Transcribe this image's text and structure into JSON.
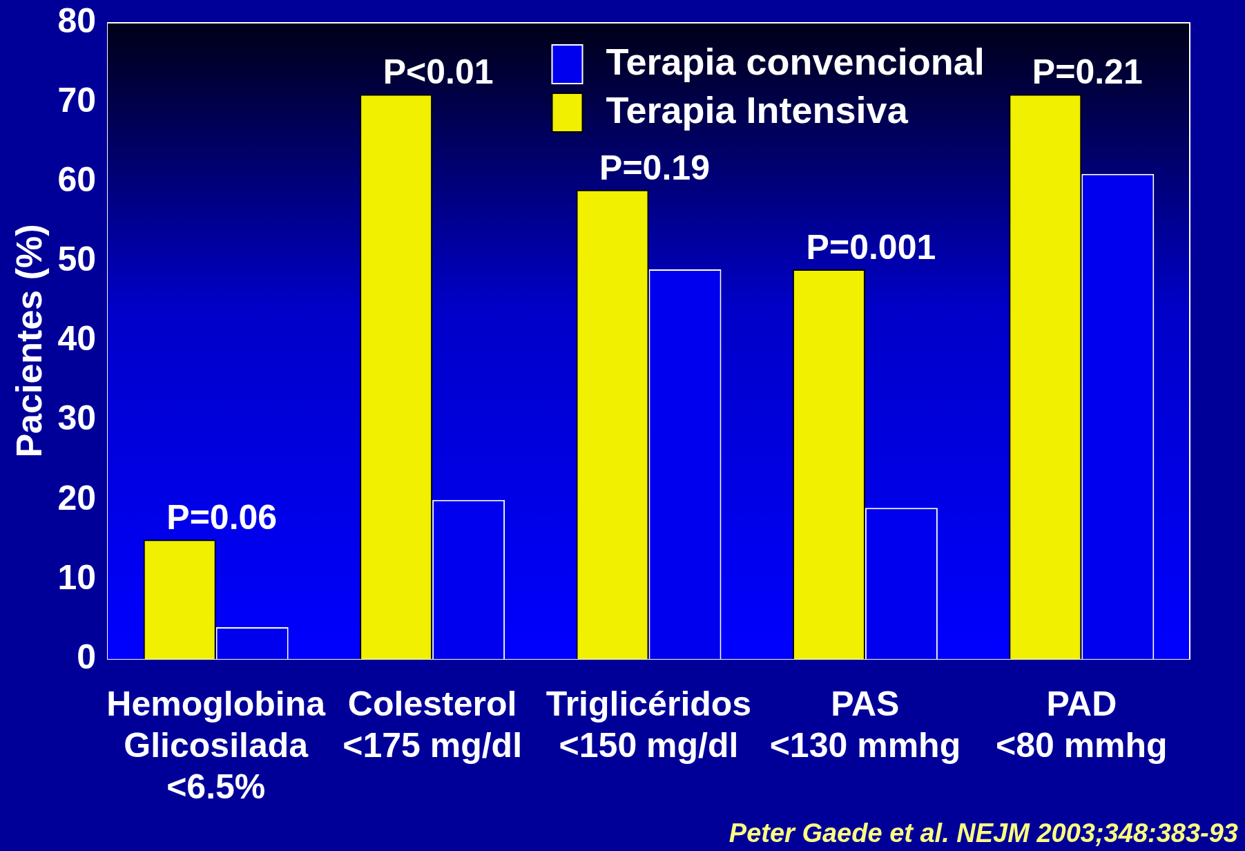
{
  "chart_data": {
    "type": "bar",
    "ylabel": "Pacientes (%)",
    "categories": [
      "Hemoglobina\nGlicosilada\n<6.5%",
      "Colesterol\n<175 mg/dl",
      "Triglicéridos\n<150 mg/dl",
      "PAS\n<130 mmhg",
      "PAD\n<80 mmhg"
    ],
    "series": [
      {
        "name": "Terapia Intensiva",
        "color": "#f0f000",
        "values": [
          15,
          71,
          59,
          49,
          71
        ]
      },
      {
        "name": "Terapia convencional",
        "color": "#0000ee",
        "values": [
          4,
          20,
          49,
          19,
          61
        ]
      }
    ],
    "ylim": [
      0,
      80
    ],
    "yticks": [
      0,
      10,
      20,
      30,
      40,
      50,
      60,
      70,
      80
    ],
    "grid": false,
    "legend": "top",
    "annotations": [
      {
        "text": "P=0.06",
        "x": "Hemoglobina\nGlicosilada\n<6.5%",
        "y": 15
      },
      {
        "text": "P<0.01",
        "x": "Colesterol\n<175 mg/dl",
        "y": 71
      },
      {
        "text": "P=0.19",
        "x": "Triglicéridos\n<150 mg/dl",
        "y": 59
      },
      {
        "text": "P=0.001",
        "x": "PAS\n<130 mmhg",
        "y": 49
      },
      {
        "text": "P=0.21",
        "x": "PAD\n<80 mmhg",
        "y": 71
      },
      "Peter Gaede et al. NEJM 2003;348:383-93"
    ]
  }
}
